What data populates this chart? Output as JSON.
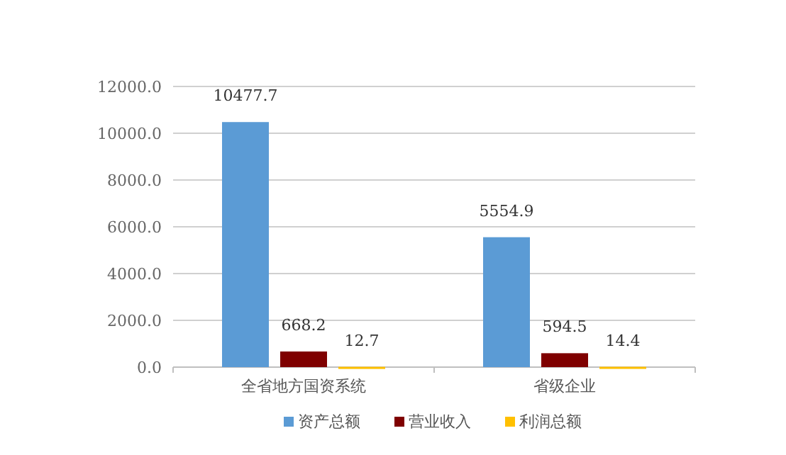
{
  "chart_data": {
    "type": "bar",
    "categories": [
      "全省地方国资系统",
      "省级企业"
    ],
    "series": [
      {
        "name": "资产总额",
        "color": "#5b9bd5",
        "values": [
          10477.7,
          5554.9
        ]
      },
      {
        "name": "营业收入",
        "color": "#7f0000",
        "values": [
          668.2,
          594.5
        ]
      },
      {
        "name": "利润总额",
        "color": "#ffc000",
        "values": [
          12.7,
          14.4
        ]
      }
    ],
    "ylim": [
      0,
      12000
    ],
    "yticks": [
      {
        "value": 0,
        "label": "0.0"
      },
      {
        "value": 2000,
        "label": "2000.0"
      },
      {
        "value": 4000,
        "label": "4000.0"
      },
      {
        "value": 6000,
        "label": "6000.0"
      },
      {
        "value": 8000,
        "label": "8000.0"
      },
      {
        "value": 10000,
        "label": "10000.0"
      },
      {
        "value": 12000,
        "label": "12000.0"
      }
    ],
    "grid": "y",
    "data_labels": true,
    "legend": "bottom"
  }
}
